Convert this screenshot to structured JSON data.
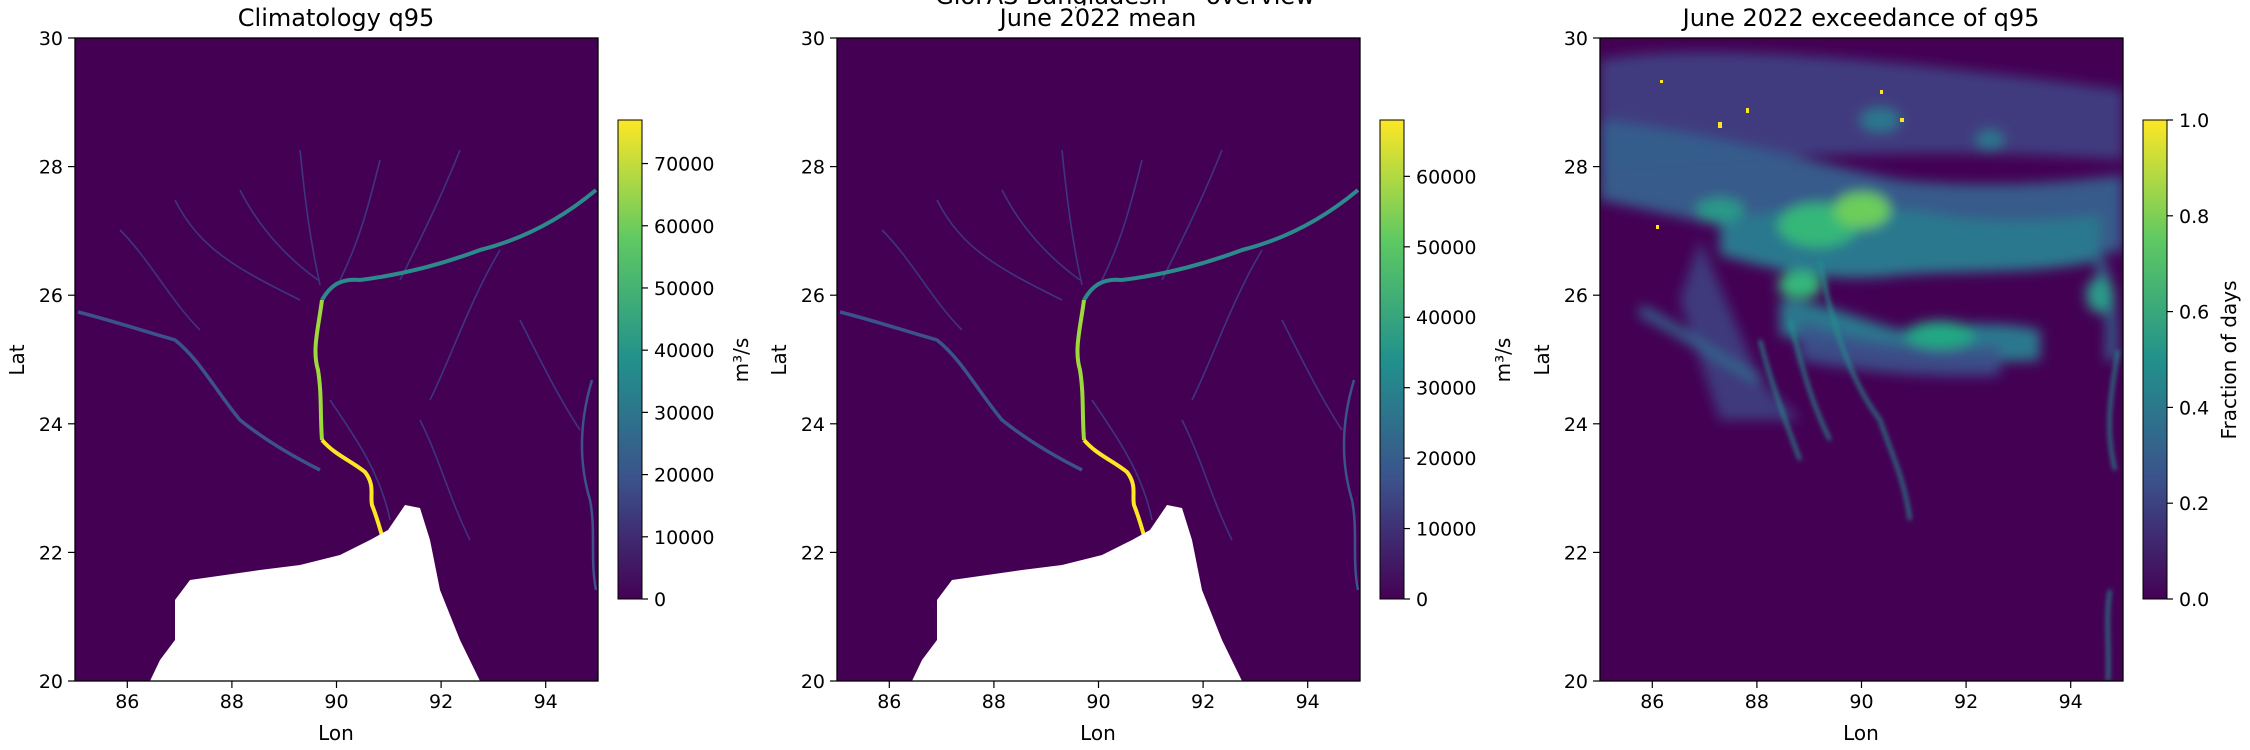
{
  "figure": {
    "suptitle": "GloFAS Bangladesh — overview"
  },
  "chart_data": [
    {
      "type": "heatmap",
      "title": "Climatology q95",
      "xlabel": "Lon",
      "ylabel": "Lat",
      "xlim": [
        85,
        95
      ],
      "ylim": [
        20,
        30
      ],
      "xticks": [
        86,
        88,
        90,
        92,
        94
      ],
      "yticks": [
        20,
        22,
        24,
        26,
        28,
        30
      ],
      "colorbar": {
        "label": "m³/s",
        "range": [
          0,
          77000
        ],
        "ticks": [
          0,
          10000,
          20000,
          30000,
          40000,
          50000,
          60000,
          70000
        ],
        "colormap": "viridis"
      },
      "no_data_region": "Bay of Bengal (white)"
    },
    {
      "type": "heatmap",
      "title": "June 2022 mean",
      "xlabel": "Lon",
      "ylabel": "Lat",
      "xlim": [
        85,
        95
      ],
      "ylim": [
        20,
        30
      ],
      "xticks": [
        86,
        88,
        90,
        92,
        94
      ],
      "yticks": [
        20,
        22,
        24,
        26,
        28,
        30
      ],
      "colorbar": {
        "label": "m³/s",
        "range": [
          0,
          68000
        ],
        "ticks": [
          0,
          10000,
          20000,
          30000,
          40000,
          50000,
          60000
        ],
        "colormap": "viridis"
      },
      "no_data_region": "Bay of Bengal (white)"
    },
    {
      "type": "heatmap",
      "title": "June 2022 exceedance of q95",
      "xlabel": "Lon",
      "ylabel": "Lat",
      "xlim": [
        85,
        95
      ],
      "ylim": [
        20,
        30
      ],
      "xticks": [
        86,
        88,
        90,
        92,
        94
      ],
      "yticks": [
        20,
        22,
        24,
        26,
        28,
        30
      ],
      "colorbar": {
        "label": "Fraction of days",
        "range": [
          0,
          1
        ],
        "ticks": [
          "0.0",
          "0.2",
          "0.4",
          "0.6",
          "0.8",
          "1.0"
        ],
        "colormap": "viridis"
      }
    }
  ],
  "colors": {
    "viridis_low": "#440154",
    "viridis_q1": "#3b528b",
    "viridis_mid": "#21918c",
    "viridis_q3": "#5ec962",
    "viridis_high": "#fde725",
    "no_data": "#ffffff",
    "axis": "#000000"
  }
}
